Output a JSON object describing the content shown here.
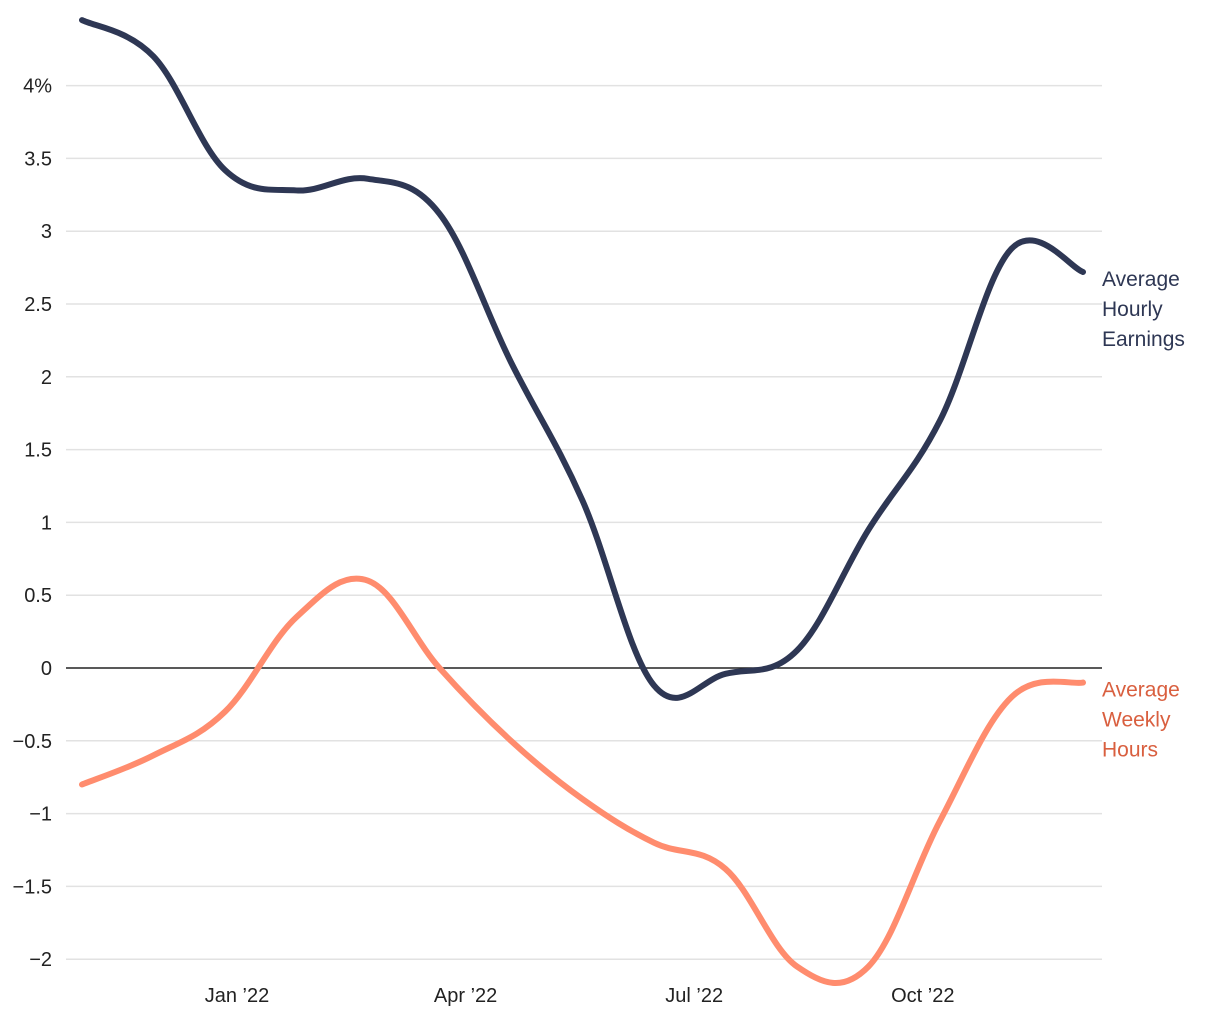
{
  "chart_data": {
    "type": "line",
    "title": "",
    "xlabel": "",
    "ylabel": "",
    "ylim": [
      -2.2,
      4.5
    ],
    "xlim": [
      "2021-10",
      "2022-12"
    ],
    "grid": true,
    "y_ticks": [
      {
        "value": 4,
        "label": "4%"
      },
      {
        "value": 3.5,
        "label": "3.5"
      },
      {
        "value": 3,
        "label": "3"
      },
      {
        "value": 2.5,
        "label": "2.5"
      },
      {
        "value": 2,
        "label": "2"
      },
      {
        "value": 1.5,
        "label": "1.5"
      },
      {
        "value": 1,
        "label": "1"
      },
      {
        "value": 0.5,
        "label": "0.5"
      },
      {
        "value": 0,
        "label": "0"
      },
      {
        "value": -0.5,
        "label": "−0.5"
      },
      {
        "value": -1,
        "label": "−1"
      },
      {
        "value": -1.5,
        "label": "−1.5"
      },
      {
        "value": -2,
        "label": "−2"
      }
    ],
    "x_ticks": [
      {
        "value": "2022-01",
        "label": "Jan ’22"
      },
      {
        "value": "2022-04",
        "label": "Apr ’22"
      },
      {
        "value": "2022-07",
        "label": "Jul ’22"
      },
      {
        "value": "2022-10",
        "label": "Oct ’22"
      }
    ],
    "x": [
      "2021-10",
      "2021-11",
      "2021-12",
      "2022-01",
      "2022-02",
      "2022-03",
      "2022-04",
      "2022-05",
      "2022-06",
      "2022-07",
      "2022-08",
      "2022-09",
      "2022-10",
      "2022-11",
      "2022-12"
    ],
    "series": [
      {
        "name": "Average Hourly Earnings",
        "label_lines": [
          "Average",
          "Hourly",
          "Earnings"
        ],
        "color": "#2e3754",
        "values": [
          4.45,
          4.2,
          3.42,
          3.28,
          3.36,
          3.12,
          2.1,
          1.15,
          -0.12,
          -0.04,
          0.12,
          0.95,
          1.7,
          2.88,
          2.72
        ]
      },
      {
        "name": "Average Weekly Hours",
        "label_lines": [
          "Average",
          "Weekly",
          "Hours"
        ],
        "color": "#ff8c6e",
        "label_color": "#d95f3f",
        "values": [
          -0.8,
          -0.6,
          -0.3,
          0.35,
          0.6,
          0.0,
          -0.5,
          -0.9,
          -1.2,
          -1.38,
          -2.05,
          -2.05,
          -1.05,
          -0.2,
          -0.1
        ]
      }
    ]
  }
}
